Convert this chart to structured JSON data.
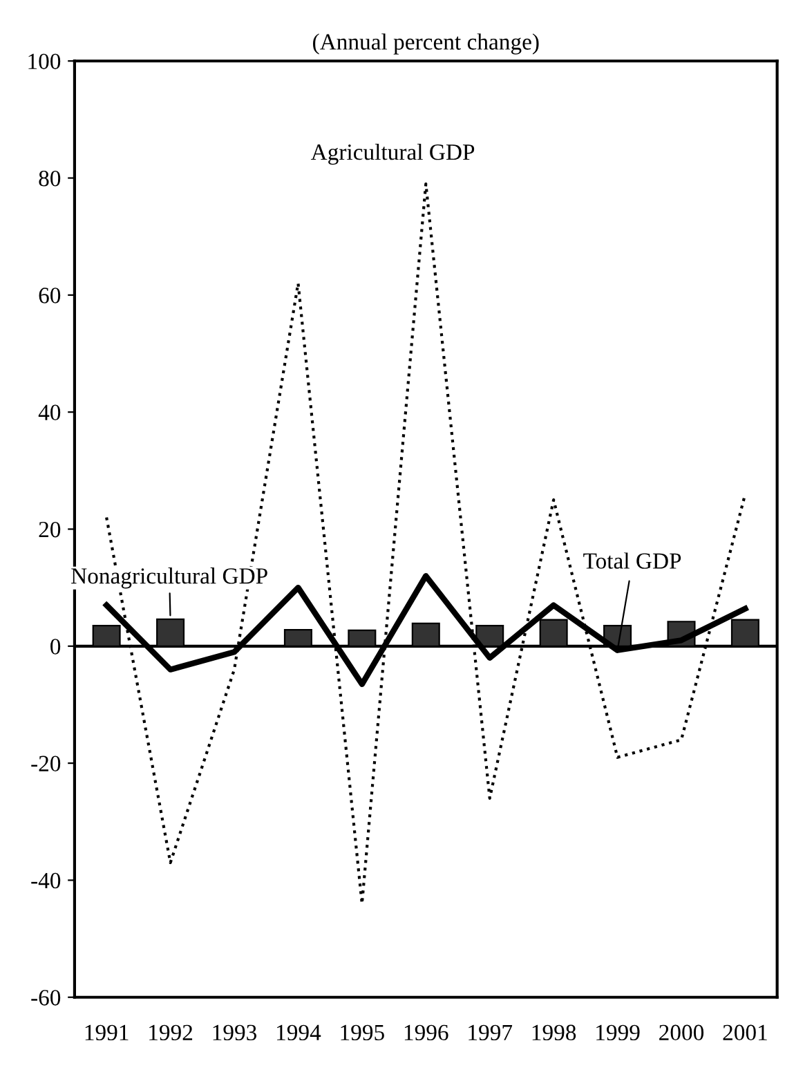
{
  "chart_data": {
    "type": "bar",
    "title": "(Annual percent change)",
    "categories": [
      "1991",
      "1992",
      "1993",
      "1994",
      "1995",
      "1996",
      "1997",
      "1998",
      "1999",
      "2000",
      "2001"
    ],
    "series": [
      {
        "color": "#333333",
        "values": [
          3.5,
          4.6,
          null,
          2.8,
          2.7,
          3.9,
          3.5,
          4.5,
          3.5,
          4.2,
          4.5
        ]
      },
      {
        "type": "line",
        "color": "#000000",
        "line_style": "dotted",
        "values": [
          22,
          -37,
          -4,
          62,
          -44,
          79,
          -26,
          25,
          -19,
          -16,
          26
        ]
      },
      {
        "type": "line",
        "color": "#000000",
        "line_style": "solid",
        "values": [
          7,
          -4,
          -1,
          10,
          -6.5,
          12,
          -2,
          7,
          -0.7,
          1,
          6.4
        ]
      }
    ],
    "ylim": [
      -60,
      100
    ],
    "yticks": [
      -60,
      -40,
      -20,
      0,
      20,
      40,
      60,
      80,
      100
    ],
    "ref_lines": [
      {
        "axis": "y",
        "value": 0
      }
    ],
    "annotations": [
      {
        "text": "Agricultural GDP",
        "x": "1996",
        "y": 79
      },
      {
        "text": "Nonagricultural GDP",
        "x": "1992",
        "y": 4.6
      },
      {
        "text": "Total GDP",
        "x": "1999",
        "y": -0.7
      }
    ]
  }
}
